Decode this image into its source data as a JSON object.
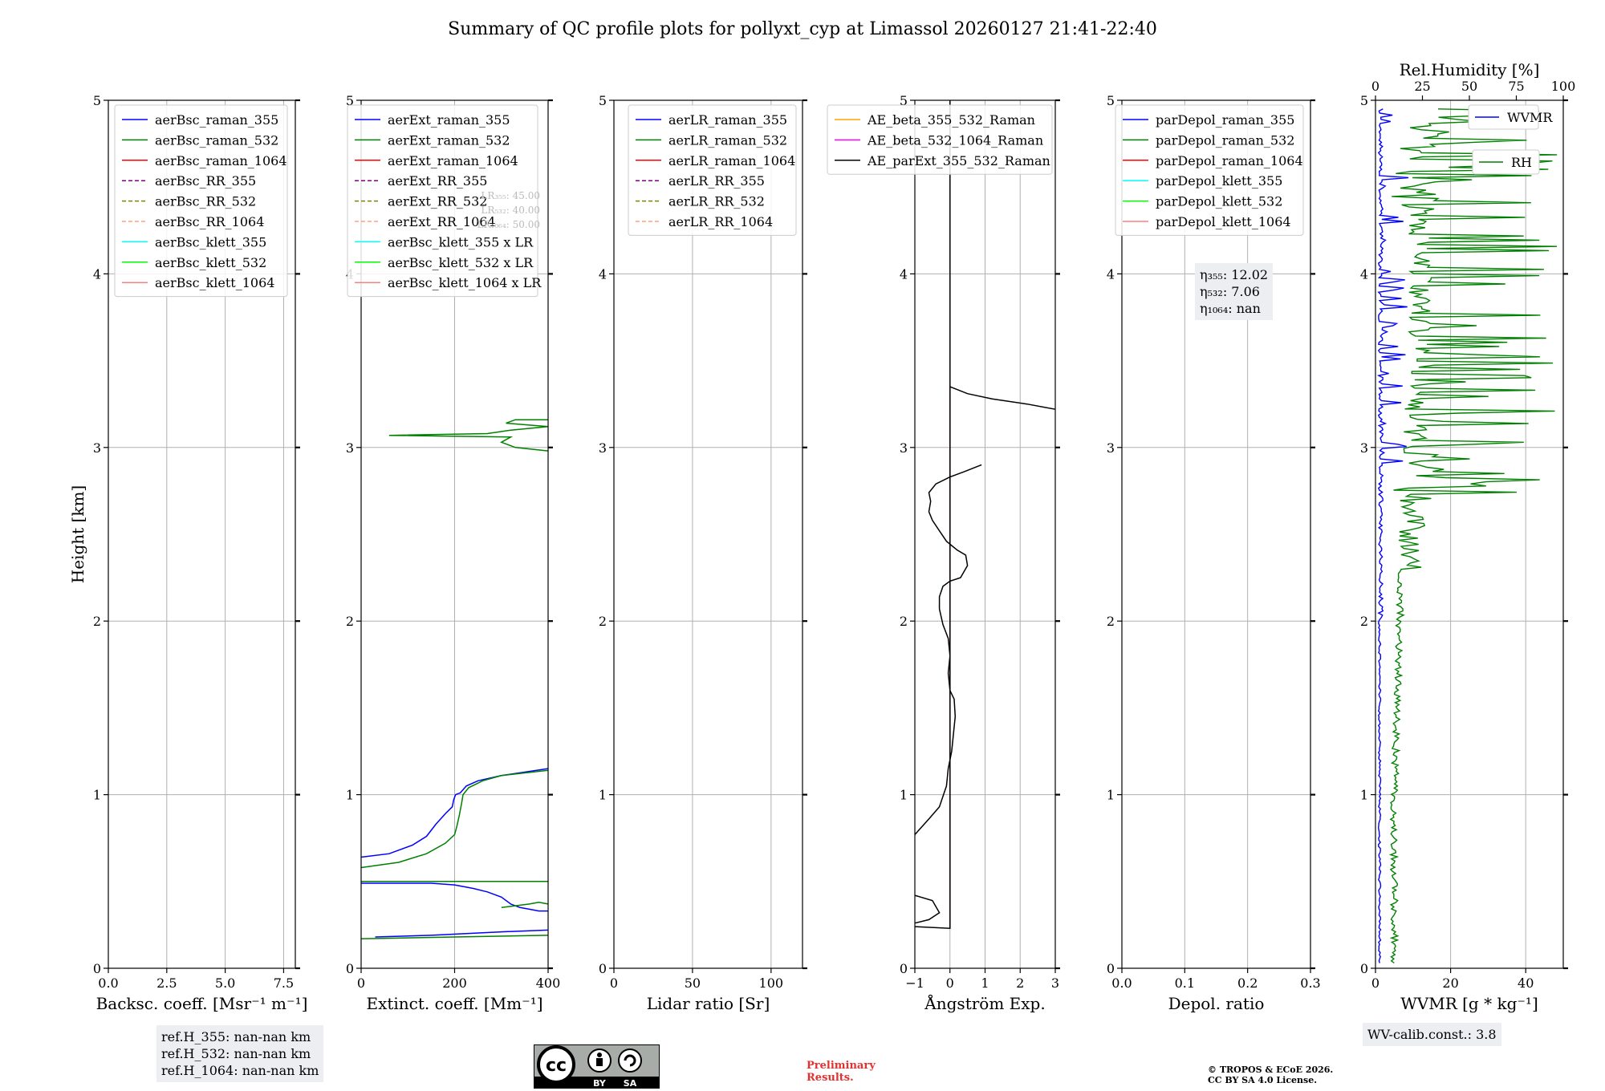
{
  "title": "Summary of QC profile plots for pollyxt_cyp at Limassol 20260127 21:41-22:40",
  "chart_data": [
    {
      "type": "line",
      "id": "bsc",
      "xlabel": "Backsc. coeff. [Msr⁻¹ m⁻¹]",
      "ylabel": "Height [km]",
      "xlim": [
        0,
        8
      ],
      "ylim": [
        0,
        5
      ],
      "xticks": [
        0,
        2.5,
        5,
        7.5
      ],
      "xtick_labels": [
        "0.0",
        "2.5",
        "5.0",
        "7.5"
      ],
      "yticks": [
        0,
        1,
        2,
        3,
        4,
        5
      ],
      "legend": [
        {
          "label": "aerBsc_raman_355",
          "color": "#0000ff",
          "style": "solid"
        },
        {
          "label": "aerBsc_raman_532",
          "color": "#008000",
          "style": "solid"
        },
        {
          "label": "aerBsc_raman_1064",
          "color": "#ff0000",
          "style": "solid"
        },
        {
          "label": "aerBsc_RR_355",
          "color": "#800080",
          "style": "dashed"
        },
        {
          "label": "aerBsc_RR_532",
          "color": "#808000",
          "style": "dashed"
        },
        {
          "label": "aerBsc_RR_1064",
          "color": "#ffa07a",
          "style": "dashed"
        },
        {
          "label": "aerBsc_klett_355",
          "color": "#00ffff",
          "style": "solid"
        },
        {
          "label": "aerBsc_klett_532",
          "color": "#00ff00",
          "style": "solid"
        },
        {
          "label": "aerBsc_klett_1064",
          "color": "#ff7f7f",
          "style": "solid"
        }
      ],
      "series": []
    },
    {
      "type": "line",
      "id": "ext",
      "xlabel": "Extinct. coeff. [Mm⁻¹]",
      "xlim": [
        0,
        400
      ],
      "ylim": [
        0,
        5
      ],
      "xticks": [
        0,
        200,
        400
      ],
      "xtick_labels": [
        "0",
        "200",
        "400"
      ],
      "yticks": [
        0,
        1,
        2,
        3,
        4,
        5
      ],
      "legend": [
        {
          "label": "aerExt_raman_355",
          "color": "#0000ff",
          "style": "solid"
        },
        {
          "label": "aerExt_raman_532",
          "color": "#008000",
          "style": "solid"
        },
        {
          "label": "aerExt_raman_1064",
          "color": "#ff0000",
          "style": "solid"
        },
        {
          "label": "aerExt_RR_355",
          "color": "#800080",
          "style": "dashed"
        },
        {
          "label": "aerExt_RR_532",
          "color": "#808000",
          "style": "dashed"
        },
        {
          "label": "aerExt_RR_1064",
          "color": "#ffa07a",
          "style": "dashed"
        },
        {
          "label": "aerBsc_klett_355 x LR",
          "color": "#00ffff",
          "style": "solid"
        },
        {
          "label": "aerBsc_klett_532 x LR",
          "color": "#00ff00",
          "style": "solid"
        },
        {
          "label": "aerBsc_klett_1064 x LR",
          "color": "#ff7f7f",
          "style": "solid"
        }
      ],
      "annotations": [
        "LR₃₅₅: 45.00",
        "LR₅₃₂: 40.00",
        "LR₁₀₆₄: 50.00"
      ],
      "series": [
        {
          "name": "aerExt_raman_355",
          "color": "#0000ff",
          "segments": [
            [
              [
                30,
                0.18
              ],
              [
                150,
                0.19
              ],
              [
                300,
                0.21
              ],
              [
                400,
                0.22
              ]
            ],
            [
              [
                0,
                0.49
              ],
              [
                150,
                0.49
              ],
              [
                200,
                0.48
              ],
              [
                240,
                0.46
              ],
              [
                270,
                0.44
              ],
              [
                300,
                0.41
              ],
              [
                320,
                0.37
              ],
              [
                340,
                0.35
              ],
              [
                360,
                0.34
              ],
              [
                380,
                0.33
              ],
              [
                400,
                0.33
              ]
            ],
            [
              [
                -10,
                0.64
              ],
              [
                60,
                0.66
              ],
              [
                110,
                0.71
              ],
              [
                140,
                0.76
              ],
              [
                160,
                0.83
              ],
              [
                180,
                0.89
              ],
              [
                195,
                0.93
              ],
              [
                198,
                0.97
              ],
              [
                202,
                1.0
              ],
              [
                212,
                1.01
              ],
              [
                225,
                1.05
              ],
              [
                250,
                1.08
              ],
              [
                300,
                1.11
              ],
              [
                400,
                1.15
              ]
            ]
          ]
        },
        {
          "name": "aerExt_raman_532",
          "color": "#008000",
          "segments": [
            [
              [
                0,
                0.17
              ],
              [
                200,
                0.18
              ],
              [
                400,
                0.19
              ]
            ],
            [
              [
                0,
                0.5
              ],
              [
                200,
                0.5
              ],
              [
                400,
                0.5
              ]
            ],
            [
              [
                300,
                0.35
              ],
              [
                330,
                0.36
              ],
              [
                360,
                0.37
              ],
              [
                380,
                0.38
              ],
              [
                400,
                0.37
              ]
            ],
            [
              [
                0,
                0.58
              ],
              [
                80,
                0.61
              ],
              [
                140,
                0.66
              ],
              [
                180,
                0.72
              ],
              [
                200,
                0.77
              ],
              [
                205,
                0.82
              ],
              [
                210,
                0.88
              ],
              [
                215,
                0.95
              ],
              [
                218,
                1.0
              ],
              [
                230,
                1.04
              ],
              [
                260,
                1.08
              ],
              [
                300,
                1.11
              ],
              [
                400,
                1.14
              ]
            ],
            [
              [
                400,
                2.98
              ],
              [
                330,
                3.0
              ],
              [
                300,
                3.03
              ],
              [
                320,
                3.06
              ],
              [
                60,
                3.07
              ],
              [
                270,
                3.08
              ],
              [
                320,
                3.1
              ],
              [
                400,
                3.12
              ],
              [
                310,
                3.14
              ],
              [
                330,
                3.16
              ],
              [
                400,
                3.16
              ]
            ]
          ]
        }
      ]
    },
    {
      "type": "line",
      "id": "lr",
      "xlabel": "Lidar ratio [Sr]",
      "xlim": [
        0,
        120
      ],
      "ylim": [
        0,
        5
      ],
      "xticks": [
        0,
        50,
        100
      ],
      "xtick_labels": [
        "0",
        "50",
        "100"
      ],
      "yticks": [
        0,
        1,
        2,
        3,
        4,
        5
      ],
      "legend": [
        {
          "label": "aerLR_raman_355",
          "color": "#0000ff",
          "style": "solid"
        },
        {
          "label": "aerLR_raman_532",
          "color": "#008000",
          "style": "solid"
        },
        {
          "label": "aerLR_raman_1064",
          "color": "#ff0000",
          "style": "solid"
        },
        {
          "label": "aerLR_RR_355",
          "color": "#800080",
          "style": "dashed"
        },
        {
          "label": "aerLR_RR_532",
          "color": "#808000",
          "style": "dashed"
        },
        {
          "label": "aerLR_RR_1064",
          "color": "#ffa07a",
          "style": "dashed"
        }
      ],
      "series": []
    },
    {
      "type": "line",
      "id": "ae",
      "xlabel": "Ångström Exp.",
      "xlim": [
        -1,
        3
      ],
      "ylim": [
        0,
        5
      ],
      "xticks": [
        -1,
        0,
        1,
        2,
        3
      ],
      "xtick_labels": [
        "−1",
        "0",
        "1",
        "2",
        "3"
      ],
      "yticks": [
        0,
        1,
        2,
        3,
        4,
        5
      ],
      "legend": [
        {
          "label": "AE_beta_355_532_Raman",
          "color": "#ffa500",
          "style": "solid"
        },
        {
          "label": "AE_beta_532_1064_Raman",
          "color": "#ff00ff",
          "style": "solid"
        },
        {
          "label": "AE_parExt_355_532_Raman",
          "color": "#000000",
          "style": "solid"
        }
      ],
      "series": [
        {
          "name": "AE_beta_532_1064_Raman",
          "color": "#ff00ff",
          "segments": [
            [
              [
                0,
                0.23
              ],
              [
                0,
                3.35
              ]
            ]
          ]
        },
        {
          "name": "AE_parExt_355_532_Raman",
          "color": "#000000",
          "segments": [
            [
              [
                -1,
                0.24
              ],
              [
                0,
                0.23
              ],
              [
                0,
                5.0
              ]
            ],
            [
              [
                -1,
                0.26
              ],
              [
                -0.6,
                0.28
              ],
              [
                -0.3,
                0.32
              ],
              [
                -0.5,
                0.39
              ],
              [
                -1,
                0.42
              ]
            ],
            [
              [
                -1,
                0.77
              ],
              [
                -0.6,
                0.86
              ],
              [
                -0.3,
                0.93
              ],
              [
                -0.2,
                0.99
              ],
              [
                -0.1,
                1.05
              ],
              [
                -0.05,
                1.15
              ],
              [
                0.05,
                1.25
              ],
              [
                0.1,
                1.35
              ],
              [
                0.15,
                1.45
              ],
              [
                0.12,
                1.55
              ],
              [
                0,
                1.6
              ],
              [
                -0.05,
                1.7
              ],
              [
                0,
                1.8
              ],
              [
                -0.05,
                1.9
              ],
              [
                -0.2,
                1.98
              ],
              [
                -0.3,
                2.07
              ],
              [
                -0.3,
                2.14
              ],
              [
                -0.2,
                2.2
              ],
              [
                0,
                2.23
              ],
              [
                0.3,
                2.25
              ],
              [
                0.5,
                2.32
              ],
              [
                0.45,
                2.38
              ],
              [
                0.2,
                2.41
              ],
              [
                -0.1,
                2.46
              ],
              [
                -0.3,
                2.52
              ],
              [
                -0.5,
                2.58
              ],
              [
                -0.6,
                2.63
              ],
              [
                -0.55,
                2.69
              ],
              [
                -0.6,
                2.74
              ],
              [
                -0.4,
                2.79
              ],
              [
                0,
                2.83
              ],
              [
                0.4,
                2.86
              ],
              [
                0.9,
                2.9
              ]
            ],
            [
              [
                0,
                3.35
              ],
              [
                0.5,
                3.31
              ],
              [
                1.2,
                3.28
              ],
              [
                2.2,
                3.25
              ],
              [
                3,
                3.22
              ]
            ]
          ]
        }
      ]
    },
    {
      "type": "line",
      "id": "depol",
      "xlabel": "Depol. ratio",
      "xlim": [
        0,
        0.3
      ],
      "ylim": [
        0,
        5
      ],
      "xticks": [
        0,
        0.1,
        0.2,
        0.3
      ],
      "xtick_labels": [
        "0.0",
        "0.1",
        "0.2",
        "0.3"
      ],
      "yticks": [
        0,
        1,
        2,
        3,
        4,
        5
      ],
      "legend": [
        {
          "label": "parDepol_raman_355",
          "color": "#0000ff",
          "style": "solid"
        },
        {
          "label": "parDepol_raman_532",
          "color": "#008000",
          "style": "solid"
        },
        {
          "label": "parDepol_raman_1064",
          "color": "#ff0000",
          "style": "solid"
        },
        {
          "label": "parDepol_klett_355",
          "color": "#00ffff",
          "style": "solid"
        },
        {
          "label": "parDepol_klett_532",
          "color": "#00ff00",
          "style": "solid"
        },
        {
          "label": "parDepol_klett_1064",
          "color": "#ff7f7f",
          "style": "solid"
        }
      ],
      "annotations": [
        "η₃₅₅: 12.02",
        "η₅₃₂: 7.06",
        "η₁₀₆₄: nan"
      ],
      "series": []
    },
    {
      "type": "line",
      "id": "wv",
      "xlabel": "WVMR [g * kg⁻¹]",
      "x2label": "Rel.Humidity [%]",
      "xlim": [
        0,
        50
      ],
      "x2lim": [
        0,
        100
      ],
      "ylim": [
        0,
        5
      ],
      "xticks": [
        0,
        20,
        40
      ],
      "xtick_labels": [
        "0",
        "20",
        "40"
      ],
      "x2ticks": [
        0,
        25,
        50,
        75,
        100
      ],
      "x2tick_labels": [
        "0",
        "25",
        "50",
        "75",
        "100"
      ],
      "yticks": [
        0,
        1,
        2,
        3,
        4,
        5
      ],
      "legend": [
        {
          "label": "WVMR",
          "color": "#0000ff",
          "style": "solid"
        },
        {
          "label": "RH",
          "color": "#008000",
          "style": "solid"
        }
      ],
      "annotations": [
        "WV-calib.const.: 3.8"
      ],
      "series": []
    }
  ],
  "notes": {
    "reference_heights": [
      "ref.H_355: nan-nan km",
      "ref.H_532: nan-nan km",
      "ref.H_1064: nan-nan km"
    ],
    "preliminary": [
      "Preliminary",
      "Results."
    ],
    "copyright": [
      "© TROPOS & ECoE 2026.",
      "CC BY SA 4.0 License."
    ],
    "license_badge": {
      "by": "BY",
      "sa": "SA"
    }
  }
}
